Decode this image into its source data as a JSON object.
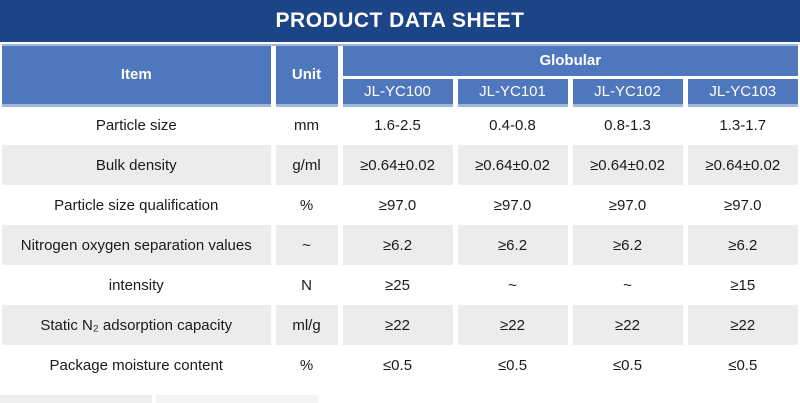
{
  "title": "PRODUCT DATA SHEET",
  "table": {
    "headers": {
      "item": "Item",
      "unit": "Unit",
      "group": "Globular"
    },
    "models": [
      "JL-YC100",
      "JL-YC101",
      "JL-YC102",
      "JL-YC103"
    ],
    "rows": [
      {
        "item": "Particle size",
        "unit": "mm",
        "values": [
          "1.6-2.5",
          "0.4-0.8",
          "0.8-1.3",
          "1.3-1.7"
        ]
      },
      {
        "item": "Bulk density",
        "unit": "g/ml",
        "values": [
          "≥0.64±0.02",
          "≥0.64±0.02",
          "≥0.64±0.02",
          "≥0.64±0.02"
        ]
      },
      {
        "item": "Particle size qualification",
        "unit": "%",
        "values": [
          "≥97.0",
          "≥97.0",
          "≥97.0",
          "≥97.0"
        ]
      },
      {
        "item": "Nitrogen oxygen separation values",
        "unit": "~",
        "values": [
          "≥6.2",
          "≥6.2",
          "≥6.2",
          "≥6.2"
        ]
      },
      {
        "item": "intensity",
        "unit": "N",
        "values": [
          "≥25",
          "~",
          "~",
          "≥15"
        ]
      },
      {
        "item": "Static N₂ adsorption capacity",
        "unit": "ml/g",
        "values": [
          "≥22",
          "≥22",
          "≥22",
          "≥22"
        ]
      },
      {
        "item": "Package moisture content",
        "unit": "%",
        "values": [
          "≤0.5",
          "≤0.5",
          "≤0.5",
          "≤0.5"
        ]
      }
    ]
  },
  "colors": {
    "title_bar": "#1C4587",
    "header_blue": "#4F77BD",
    "accent_line": "#A0B6DC",
    "row_alt": "#ECECEC",
    "header_text": "#FFFFFF",
    "body_text": "#1A1A1A"
  }
}
